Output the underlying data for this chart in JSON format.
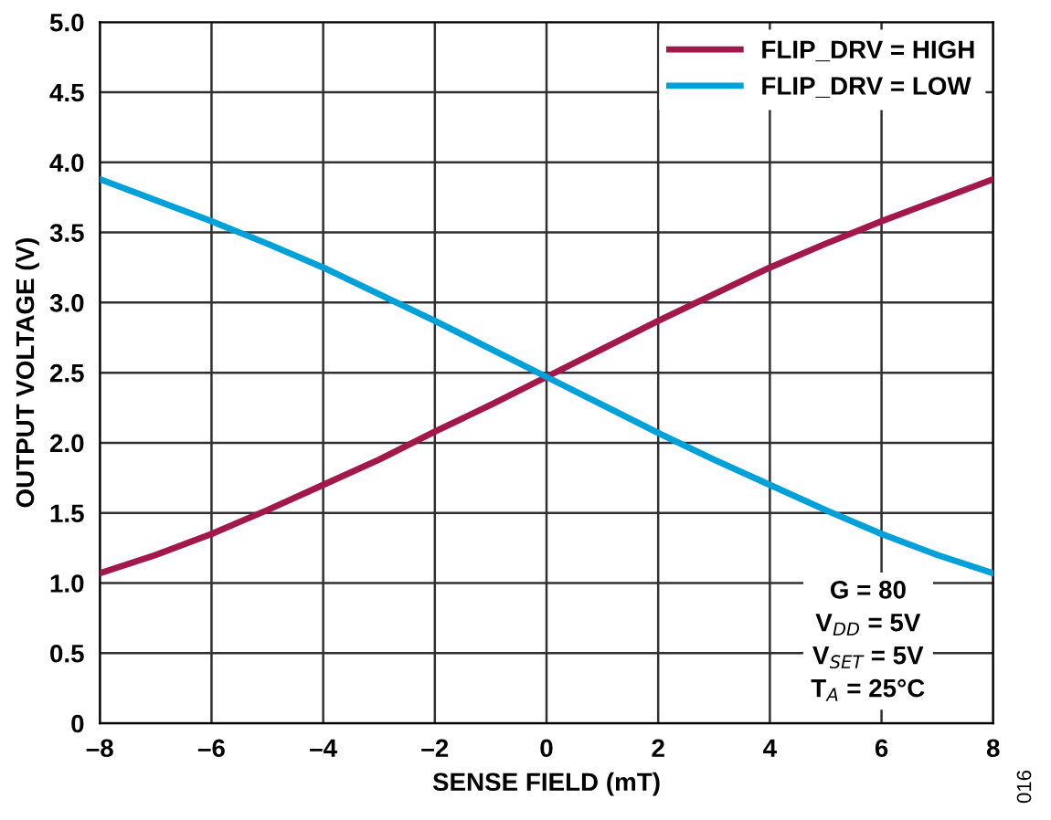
{
  "chart_data": {
    "type": "line",
    "xlabel": "SENSE FIELD (mT)",
    "ylabel": "OUTPUT VOLTAGE (V)",
    "x": [
      -8,
      -7,
      -6,
      -5,
      -4,
      -3,
      -2,
      -1,
      0,
      1,
      2,
      3,
      4,
      5,
      6,
      7,
      8
    ],
    "series": [
      {
        "name": "FLIP_DRV = HIGH",
        "color": "#a3184a",
        "values": [
          1.07,
          1.2,
          1.35,
          1.52,
          1.7,
          1.88,
          2.08,
          2.27,
          2.47,
          2.67,
          2.87,
          3.06,
          3.25,
          3.42,
          3.58,
          3.73,
          3.88
        ]
      },
      {
        "name": "FLIP_DRV = LOW",
        "color": "#00a0d8",
        "values": [
          3.88,
          3.73,
          3.58,
          3.42,
          3.25,
          3.06,
          2.87,
          2.67,
          2.47,
          2.27,
          2.07,
          1.88,
          1.7,
          1.52,
          1.35,
          1.2,
          1.07
        ]
      }
    ],
    "xlim": [
      -8,
      8
    ],
    "xticks": [
      {
        "value": -8,
        "label": "–8"
      },
      {
        "value": -6,
        "label": "–6"
      },
      {
        "value": -4,
        "label": "–4"
      },
      {
        "value": -2,
        "label": "–2"
      },
      0,
      2,
      4,
      6,
      8
    ],
    "ylim": [
      0,
      5
    ],
    "yticks": [
      {
        "value": 0,
        "label": "0"
      },
      {
        "value": 0.5,
        "label": "0.5"
      },
      {
        "value": 1,
        "label": "1.0"
      },
      {
        "value": 1.5,
        "label": "1.5"
      },
      {
        "value": 2,
        "label": "2.0"
      },
      {
        "value": 2.5,
        "label": "2.5"
      },
      {
        "value": 3,
        "label": "3.0"
      },
      {
        "value": 3.5,
        "label": "3.5"
      },
      {
        "value": 4,
        "label": "4.0"
      },
      {
        "value": 4.5,
        "label": "4.5"
      },
      {
        "value": 5,
        "label": "5.0"
      }
    ],
    "grid": true,
    "legend": "top right",
    "marker": "none",
    "line_style": "solid",
    "annotations": [
      "G = 80\nV$_{DD}$ = 5V\nV$_{SET}$ = 5V\nT$_{A}$ = 25°C",
      "016"
    ]
  }
}
